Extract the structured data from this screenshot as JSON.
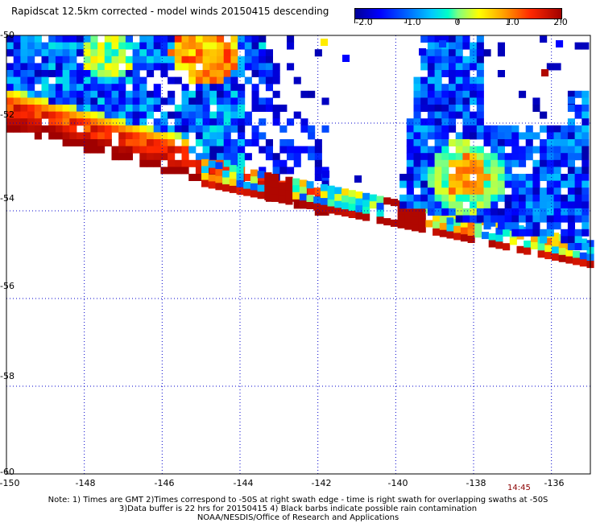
{
  "title": "Rapidscat 12.5km corrected - model winds 20150415 descending",
  "colorbar": {
    "labels": [
      "-2.0",
      "-1.0",
      "0",
      "1.0",
      "2.0"
    ],
    "min": -2.0,
    "max": 2.0
  },
  "axes": {
    "lon_labels": [
      "-150",
      "-148",
      "-146",
      "-144",
      "-142",
      "-140",
      "-138",
      "-136"
    ],
    "lat_labels": [
      "-50",
      "-52",
      "-54",
      "-56",
      "-58",
      "-60"
    ],
    "lon_range": [
      -150,
      -135
    ],
    "lat_range": [
      -60,
      -50
    ]
  },
  "time_label": "14:45",
  "notes": [
    "Note: 1) Times are GMT 2)Times correspond to -50S at right swath edge - time is right swath for overlapping swaths at -50S",
    "3)Data buffer is 22 hrs for 20150415 4) Black barbs indicate possible rain contamination",
    "NOAA/NESDIS/Office of Research and Applications"
  ]
}
